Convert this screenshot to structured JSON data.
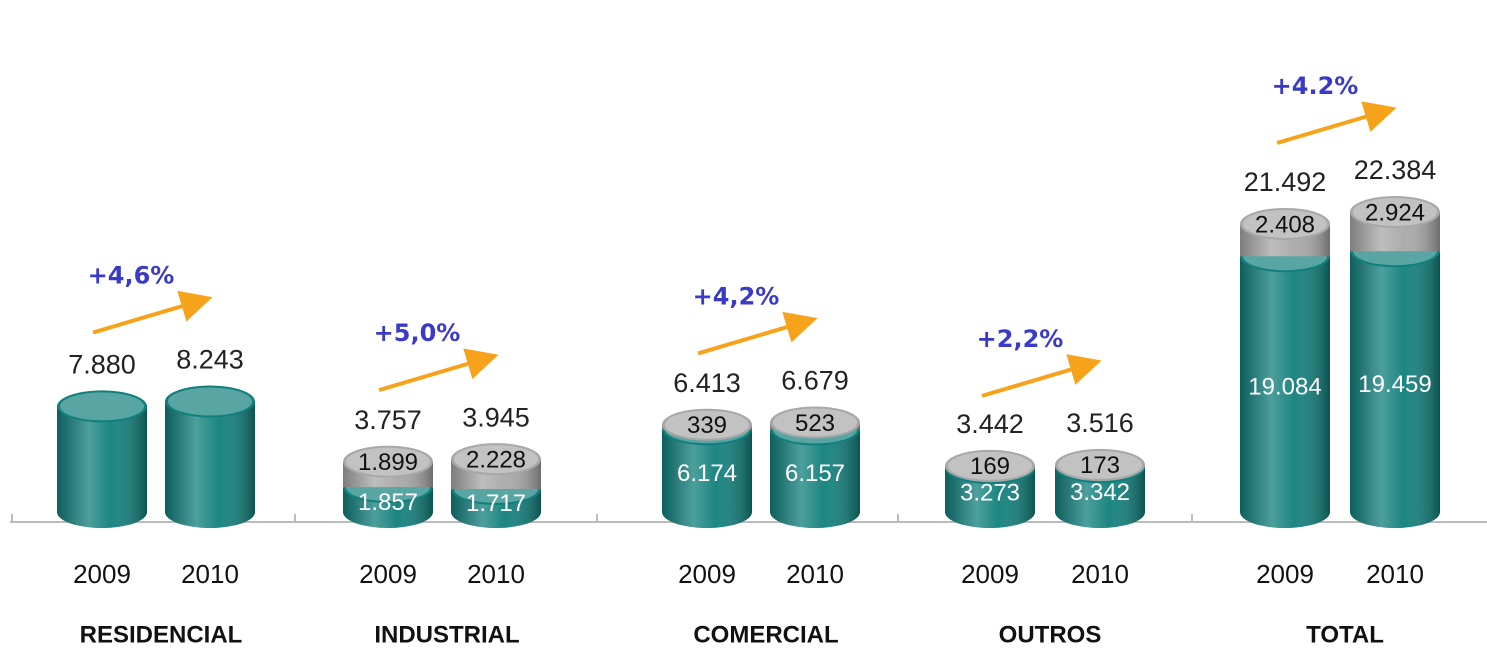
{
  "chart_data": {
    "type": "cylinder",
    "groups": [
      {
        "name": "RESIDENCIAL",
        "years": [
          "2009",
          "2010"
        ],
        "totals": [
          7880,
          8243
        ],
        "total_labels": [
          "7.880",
          "8.243"
        ],
        "growth": "+4,6%",
        "segments": []
      },
      {
        "name": "INDUSTRIAL",
        "years": [
          "2009",
          "2010"
        ],
        "totals": [
          3757,
          3945
        ],
        "total_labels": [
          "3.757",
          "3.945"
        ],
        "growth": "+5,0%",
        "segments": [
          {
            "color": "#117f7b",
            "values": [
              1857,
              1717
            ],
            "value_labels": [
              "1.857",
              "1.717"
            ]
          },
          {
            "color": "#a8a8a8",
            "values": [
              1899,
              2228
            ],
            "value_labels": [
              "1.899",
              "2.228"
            ]
          }
        ]
      },
      {
        "name": "COMERCIAL",
        "years": [
          "2009",
          "2010"
        ],
        "totals": [
          6413,
          6679
        ],
        "total_labels": [
          "6.413",
          "6.679"
        ],
        "growth": "+4,2%",
        "segments": [
          {
            "color": "#117f7b",
            "values": [
              6174,
              6157
            ],
            "value_labels": [
              "6.174",
              "6.157"
            ]
          },
          {
            "color": "#a8a8a8",
            "values": [
              339,
              523
            ]
          }
        ]
      },
      {
        "name": "OUTROS",
        "years": [
          "2009",
          "2010"
        ],
        "totals": [
          3442,
          3516
        ],
        "total_labels": [
          "3.442",
          "3.516"
        ],
        "growth": "+2,2%",
        "segments": [
          {
            "color": "#117f7b",
            "values": [
              3273,
              3342
            ],
            "value_labels": [
              "3.273",
              "3.342"
            ]
          },
          {
            "color": "#a8a8a8",
            "values": [
              169,
              173
            ]
          }
        ]
      },
      {
        "name": "TOTAL",
        "years": [
          "2009",
          "2010"
        ],
        "totals": [
          21492,
          22384
        ],
        "total_labels": [
          "21.492",
          "22.384"
        ],
        "growth": "+4.2%",
        "segments": [
          {
            "color": "#117f7b",
            "values": [
              19084,
              19459
            ],
            "value_labels": [
              "19.084",
              "19.459"
            ]
          },
          {
            "color": "#a8a8a8",
            "values": [
              2408,
              2924
            ],
            "value_labels": [
              "2.408",
              "2.924"
            ]
          }
        ]
      }
    ],
    "color": "#117f7b"
  }
}
